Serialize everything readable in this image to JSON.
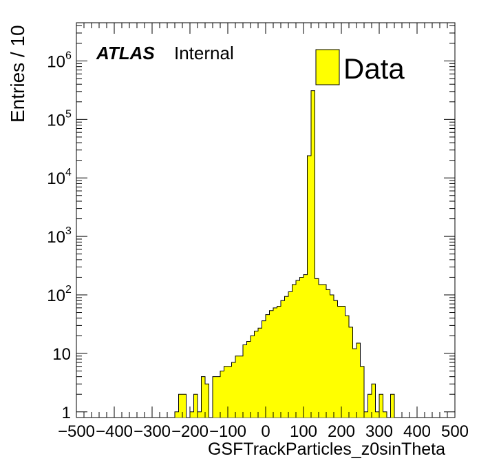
{
  "chart_data": {
    "type": "bar",
    "style": "histogram",
    "xlabel": "GSFTrackParticles_z0sinTheta",
    "ylabel": "Entries / 10",
    "xlim": [
      -500,
      500
    ],
    "ylim": [
      0.8,
      4500000
    ],
    "yscale": "log",
    "bin_width": 10,
    "fill_color": "#ffff00",
    "line_color": "#000000",
    "x_ticks": [
      -500,
      -400,
      -300,
      -200,
      -100,
      0,
      100,
      200,
      300,
      400,
      500
    ],
    "x_tick_labels": [
      "−500",
      "−400",
      "−300",
      "−200",
      "−100",
      "0",
      "100",
      "200",
      "300",
      "400",
      "500"
    ],
    "y_ticks": [
      {
        "value": 1,
        "base": "1",
        "exp": ""
      },
      {
        "value": 10,
        "base": "10",
        "exp": ""
      },
      {
        "value": 100,
        "base": "10",
        "exp": "2"
      },
      {
        "value": 1000,
        "base": "10",
        "exp": "3"
      },
      {
        "value": 10000,
        "base": "10",
        "exp": "4"
      },
      {
        "value": 100000,
        "base": "10",
        "exp": "5"
      },
      {
        "value": 1000000,
        "base": "10",
        "exp": "6"
      }
    ],
    "atlas_label": "ATLAS",
    "atlas_sublabel": "Internal",
    "legend_position": "top-right",
    "series": [
      {
        "name": "Data",
        "bin_edges_start": -240,
        "counts": [
          1,
          2,
          2,
          0,
          1,
          2,
          1,
          4,
          3,
          0,
          4,
          4,
          5,
          6,
          6,
          7,
          9,
          9,
          14,
          16,
          20,
          24,
          27,
          36,
          46,
          54,
          60,
          64,
          80,
          94,
          113,
          150,
          177,
          200,
          222,
          24000,
          310000,
          190,
          150,
          150,
          123,
          100,
          80,
          64,
          64,
          44,
          28,
          12,
          15,
          6,
          1,
          2,
          3,
          1,
          2,
          1,
          0,
          2
        ]
      }
    ]
  }
}
